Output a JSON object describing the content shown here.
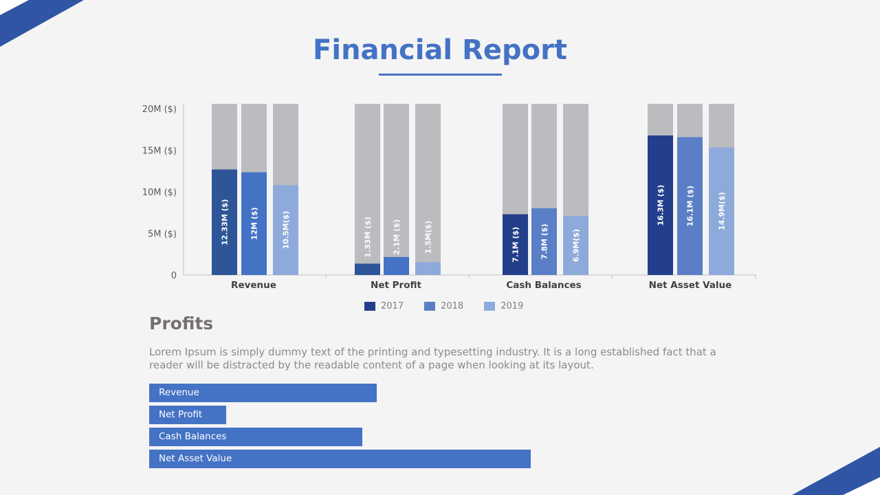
{
  "page": {
    "title": "Financial Report"
  },
  "colors": {
    "accent": "#4472c4",
    "background_bar": "#bbbcc0",
    "corner": "#2f55a4"
  },
  "chart_data": {
    "type": "bar",
    "categories": [
      "Revenue",
      "Net Profit",
      "Cash Balances",
      "Net Asset Value"
    ],
    "ylim": [
      0,
      20
    ],
    "yticks": [
      0,
      5,
      10,
      15,
      20
    ],
    "ytick_labels": [
      "0",
      "5M ($)",
      "10M ($)",
      "15M ($)",
      "20M ($)"
    ],
    "series": [
      {
        "name": "2017",
        "values": [
          12.33,
          1.33,
          7.1,
          16.3
        ],
        "labels": [
          "12.33M ($)",
          "1.33M ($)",
          "7.1M ($)",
          "16.3M ($)"
        ]
      },
      {
        "name": "2018",
        "values": [
          12,
          2.1,
          7.8,
          16.1
        ],
        "labels": [
          "12M ($)",
          "2.1M ($)",
          "7.8M ($)",
          "16.1M ($)"
        ]
      },
      {
        "name": "2019",
        "values": [
          10.5,
          1.5,
          6.9,
          14.9
        ],
        "labels": [
          "10.5M($)",
          "1.5M($)",
          "6.9M($)",
          "14.9M($)"
        ]
      }
    ],
    "bar_colors": [
      [
        "#2e5597",
        "#4472c4",
        "#8eaadb"
      ],
      [
        "#2e5597",
        "#4472c4",
        "#8eaadb"
      ],
      [
        "#233e8b",
        "#5a7fc6",
        "#8eaadb"
      ],
      [
        "#233e8b",
        "#5a7fc6",
        "#8eaadb"
      ]
    ],
    "legend": [
      {
        "label": "2017",
        "color": "#223f8c"
      },
      {
        "label": "2018",
        "color": "#5a7fc6"
      },
      {
        "label": "2019",
        "color": "#8eaadb"
      }
    ]
  },
  "profits": {
    "title": "Profits",
    "text": "Lorem Ipsum is simply dummy text of the printing and typesetting industry. It is a long established fact that a reader will be distracted by the readable content of a page when looking at its layout.",
    "bars": [
      {
        "label": "Revenue",
        "fraction": 0.596
      },
      {
        "label": "Net Profit",
        "fraction": 0.202
      },
      {
        "label": "Cash Balances",
        "fraction": 0.559
      },
      {
        "label": "Net Asset Value",
        "fraction": 1.0
      }
    ]
  }
}
